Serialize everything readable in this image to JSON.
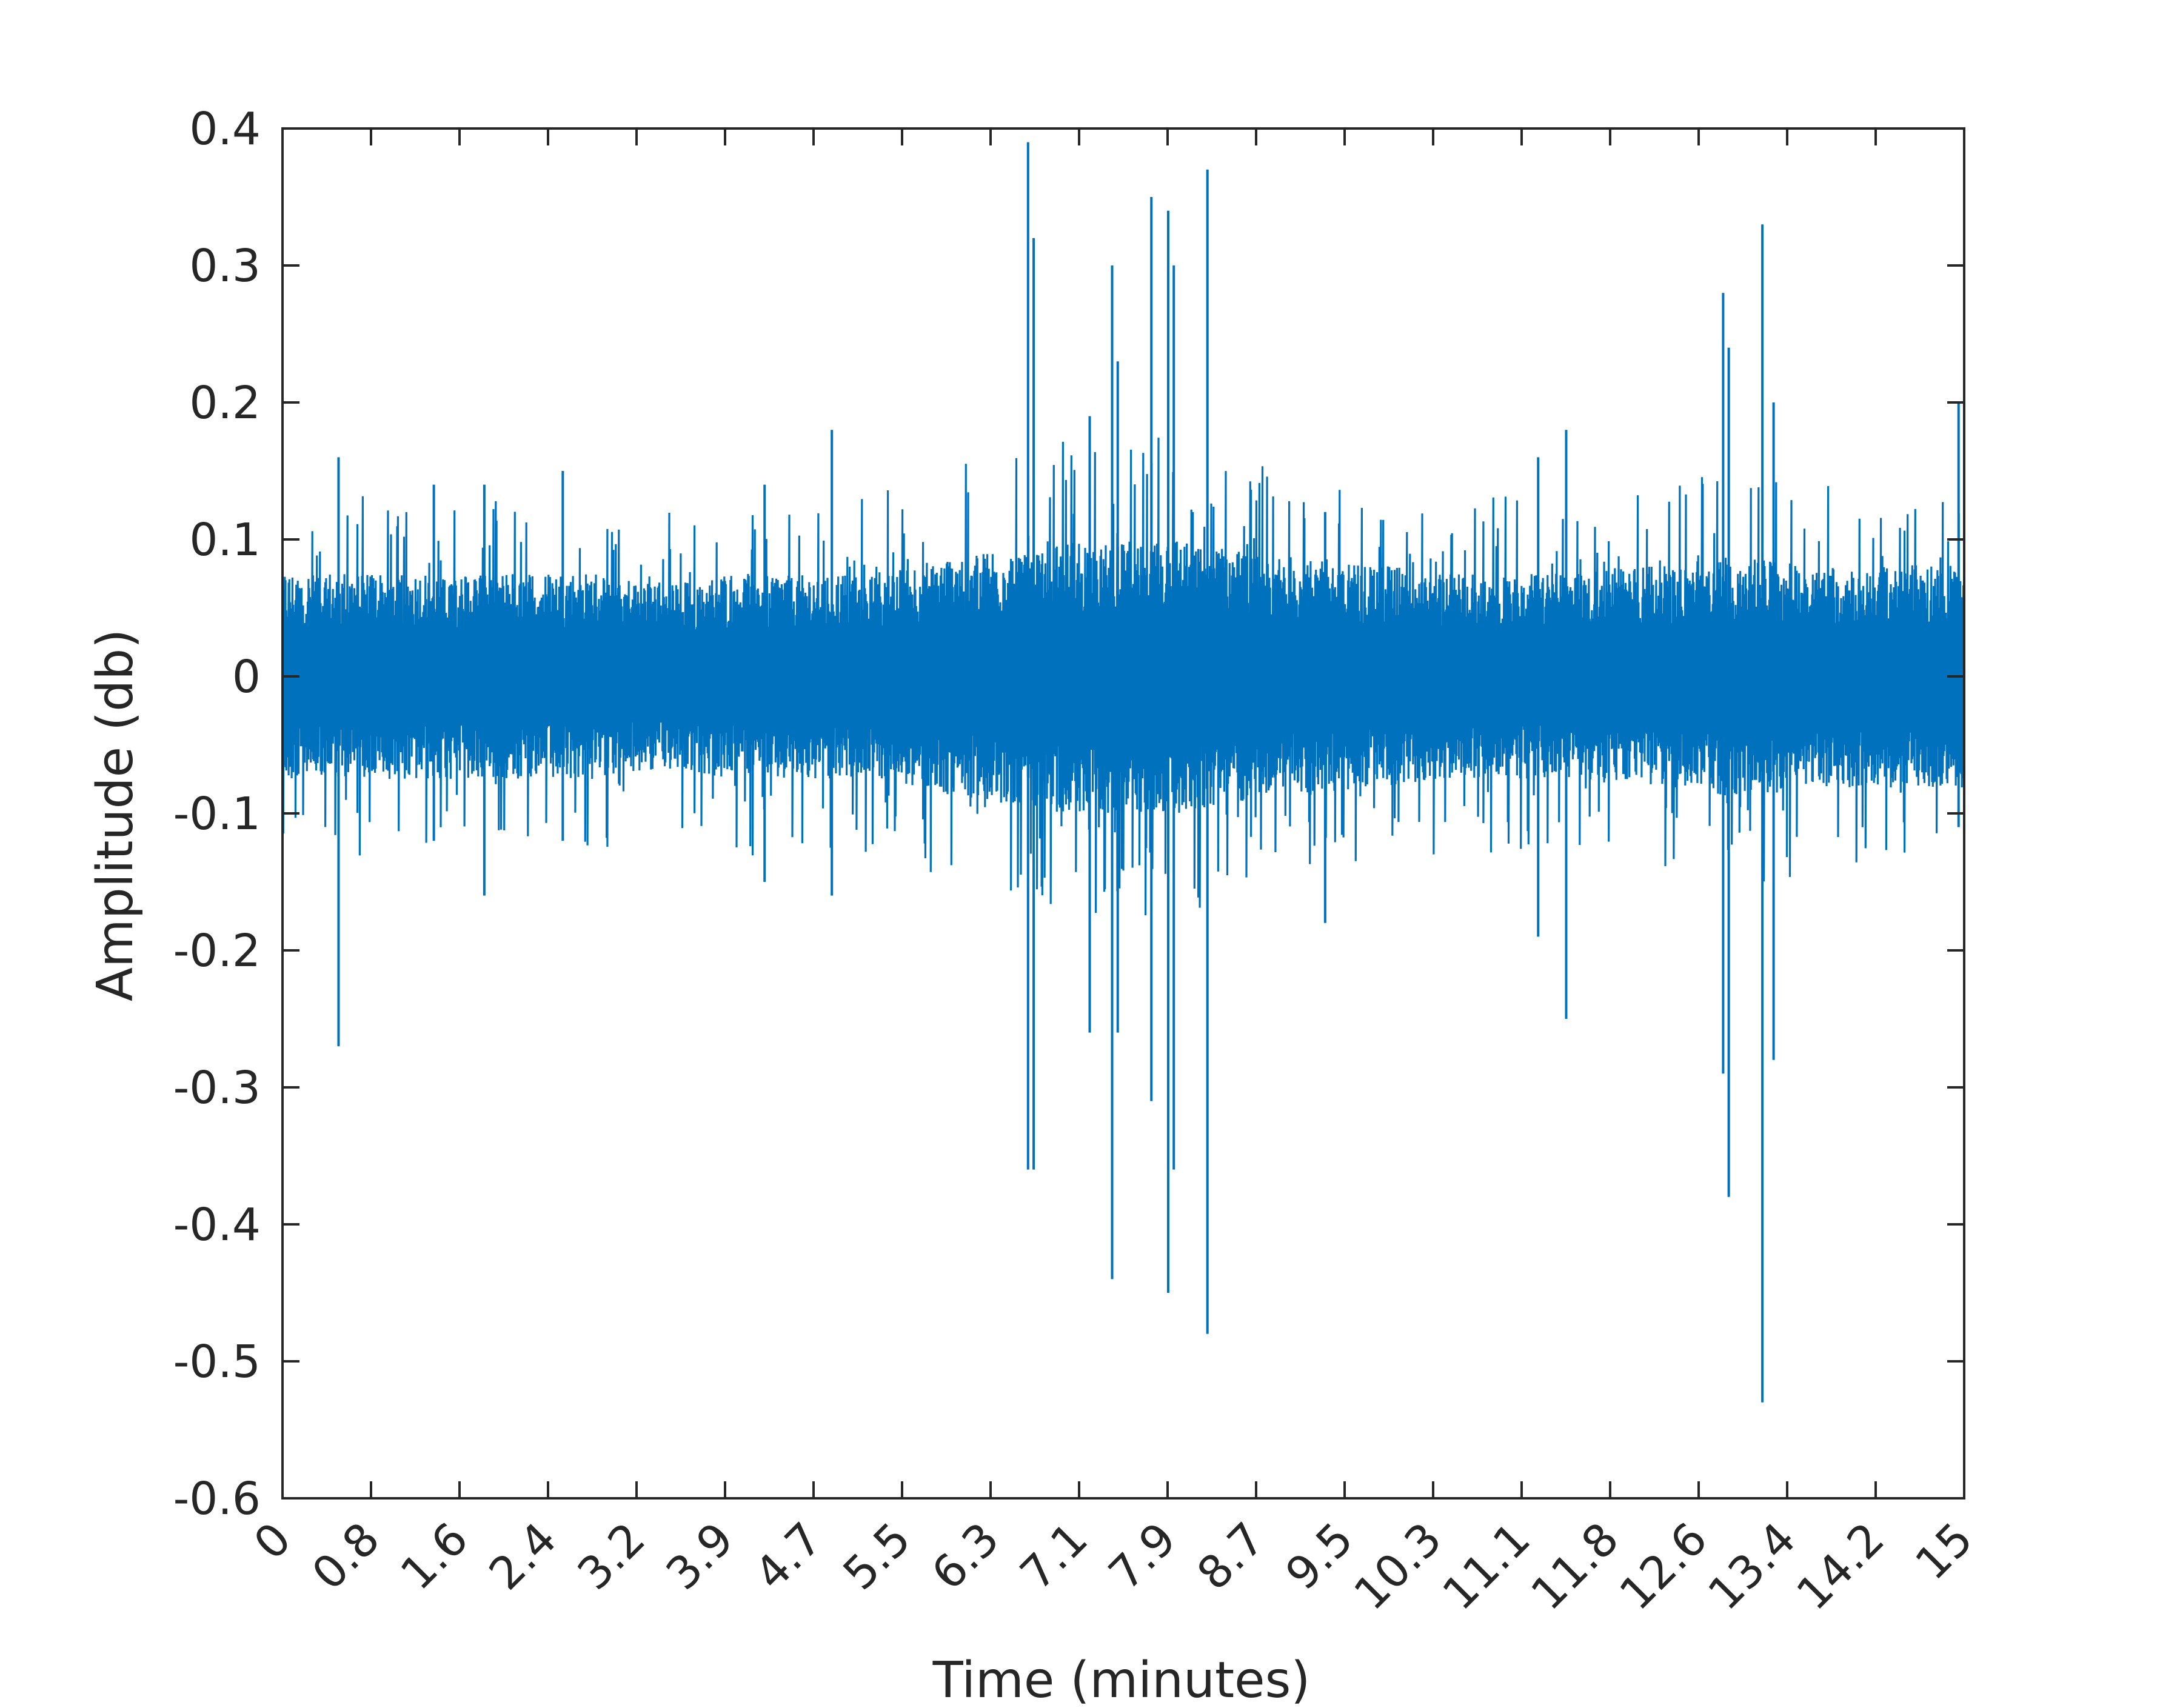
{
  "chart_data": {
    "type": "line",
    "title": "",
    "xlabel": "Time (minutes)",
    "ylabel": "Amplitude (db)",
    "xlim": [
      0,
      15
    ],
    "ylim": [
      -0.6,
      0.4
    ],
    "x_tick_labels": [
      "0",
      "0.8",
      "1.6",
      "2.4",
      "3.2",
      "3.9",
      "4.7",
      "5.5",
      "6.3",
      "7.1",
      "7.9",
      "8.7",
      "9.5",
      "10.3",
      "11.1",
      "11.8",
      "12.6",
      "13.4",
      "14.2",
      "15"
    ],
    "y_ticks": [
      0.4,
      0.3,
      0.2,
      0.1,
      0,
      -0.1,
      -0.2,
      -0.3,
      -0.4,
      -0.5,
      -0.6
    ],
    "y_tick_labels": [
      "0.4",
      "0.3",
      "0.2",
      "0.1",
      "0",
      "-0.1",
      "-0.2",
      "-0.3",
      "-0.4",
      "-0.5",
      "-0.6"
    ],
    "grid": false,
    "legend": "none",
    "series": [
      {
        "color": "#0072BD",
        "envelope": {
          "time": [
            0,
            0.4,
            0.8,
            1.2,
            1.6,
            2.0,
            2.4,
            2.8,
            3.2,
            3.6,
            4.0,
            4.4,
            4.8,
            5.2,
            5.6,
            6.0,
            6.4,
            6.8,
            7.2,
            7.6,
            8.0,
            8.4,
            8.8,
            9.2,
            9.6,
            10.0,
            10.4,
            10.8,
            11.2,
            11.6,
            12.0,
            12.4,
            12.8,
            13.2,
            13.6,
            14.0,
            14.4,
            14.8,
            15
          ],
          "upper": [
            0.06,
            0.06,
            0.06,
            0.06,
            0.06,
            0.06,
            0.06,
            0.06,
            0.055,
            0.055,
            0.06,
            0.06,
            0.06,
            0.06,
            0.065,
            0.07,
            0.075,
            0.08,
            0.08,
            0.08,
            0.08,
            0.075,
            0.07,
            0.07,
            0.065,
            0.065,
            0.06,
            0.06,
            0.06,
            0.06,
            0.065,
            0.065,
            0.07,
            0.07,
            0.065,
            0.065,
            0.065,
            0.065,
            0.065
          ],
          "lower": [
            -0.06,
            -0.06,
            -0.06,
            -0.06,
            -0.06,
            -0.06,
            -0.06,
            -0.06,
            -0.055,
            -0.055,
            -0.06,
            -0.06,
            -0.06,
            -0.06,
            -0.065,
            -0.07,
            -0.075,
            -0.08,
            -0.08,
            -0.08,
            -0.08,
            -0.075,
            -0.07,
            -0.07,
            -0.065,
            -0.065,
            -0.06,
            -0.06,
            -0.06,
            -0.06,
            -0.065,
            -0.065,
            -0.07,
            -0.07,
            -0.065,
            -0.065,
            -0.065,
            -0.065,
            -0.065
          ]
        },
        "spikes": [
          {
            "t": 0.5,
            "high": 0.16,
            "low": -0.27
          },
          {
            "t": 1.35,
            "high": 0.14,
            "low": -0.12
          },
          {
            "t": 1.8,
            "high": 0.14,
            "low": -0.16
          },
          {
            "t": 2.5,
            "high": 0.15,
            "low": -0.12
          },
          {
            "t": 4.3,
            "high": 0.14,
            "low": -0.15
          },
          {
            "t": 4.9,
            "high": 0.18,
            "low": -0.16
          },
          {
            "t": 6.65,
            "high": 0.39,
            "low": -0.36
          },
          {
            "t": 6.7,
            "high": 0.32,
            "low": -0.36
          },
          {
            "t": 7.2,
            "high": 0.19,
            "low": -0.26
          },
          {
            "t": 7.4,
            "high": 0.3,
            "low": -0.44
          },
          {
            "t": 7.45,
            "high": 0.23,
            "low": -0.26
          },
          {
            "t": 7.75,
            "high": 0.35,
            "low": -0.31
          },
          {
            "t": 7.9,
            "high": 0.34,
            "low": -0.45
          },
          {
            "t": 7.95,
            "high": 0.3,
            "low": -0.36
          },
          {
            "t": 8.25,
            "high": 0.37,
            "low": -0.48
          },
          {
            "t": 9.3,
            "high": 0.12,
            "low": -0.18
          },
          {
            "t": 11.2,
            "high": 0.16,
            "low": -0.19
          },
          {
            "t": 11.45,
            "high": 0.18,
            "low": -0.25
          },
          {
            "t": 12.85,
            "high": 0.28,
            "low": -0.29
          },
          {
            "t": 12.9,
            "high": 0.24,
            "low": -0.38
          },
          {
            "t": 13.2,
            "high": 0.33,
            "low": -0.53
          },
          {
            "t": 13.3,
            "high": 0.2,
            "low": -0.28
          },
          {
            "t": 14.95,
            "high": 0.2,
            "low": -0.11
          }
        ]
      }
    ]
  }
}
